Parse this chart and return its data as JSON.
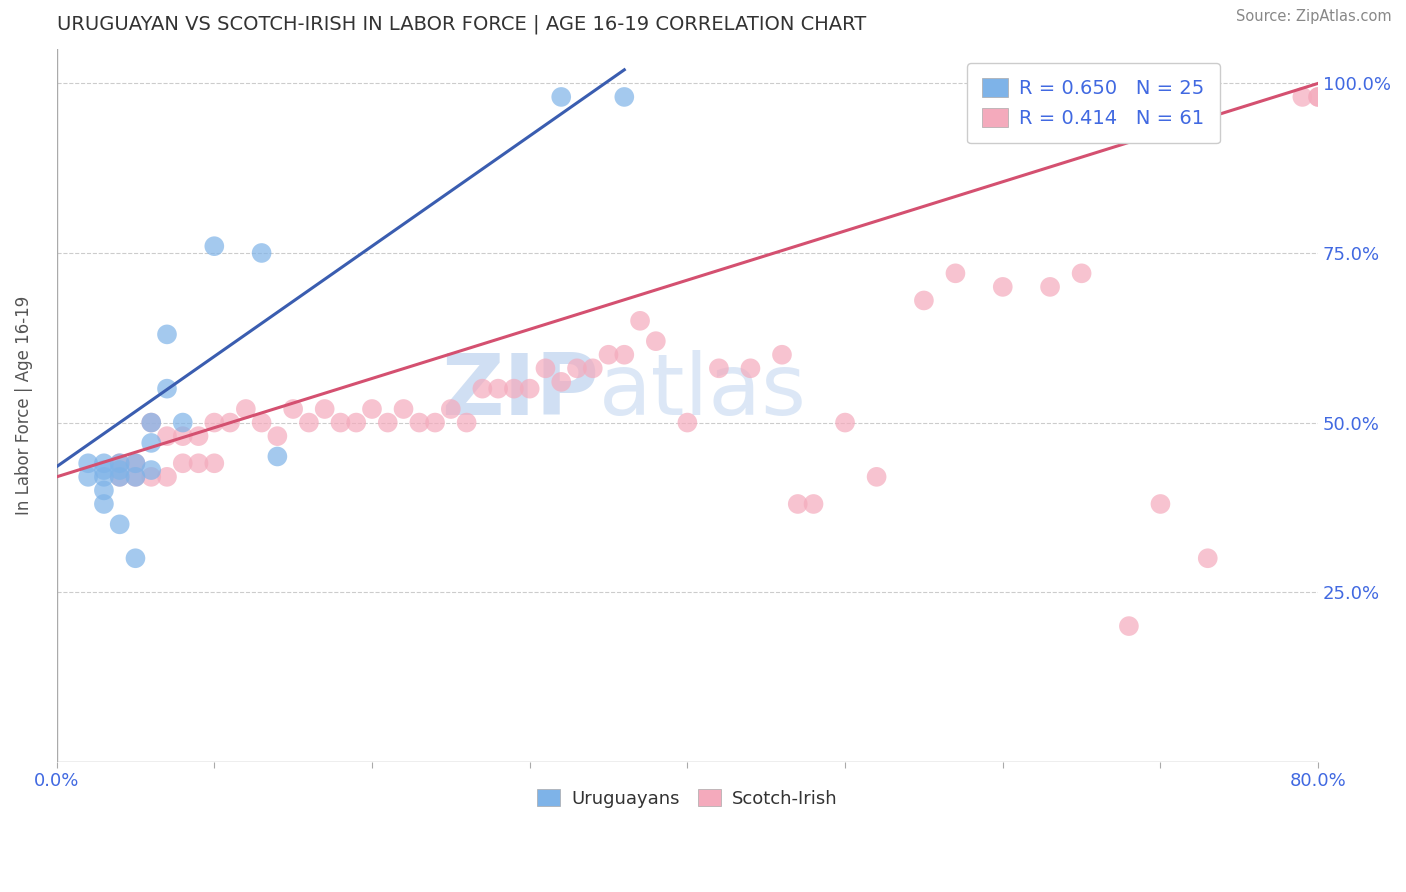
{
  "title": "URUGUAYAN VS SCOTCH-IRISH IN LABOR FORCE | AGE 16-19 CORRELATION CHART",
  "source_text": "Source: ZipAtlas.com",
  "ylabel": "In Labor Force | Age 16-19",
  "xlim": [
    0.0,
    0.8
  ],
  "ylim": [
    0.0,
    1.05
  ],
  "x_ticks": [
    0.0,
    0.1,
    0.2,
    0.3,
    0.4,
    0.5,
    0.6,
    0.7,
    0.8
  ],
  "x_tick_labels": [
    "0.0%",
    "",
    "",
    "",
    "",
    "",
    "",
    "",
    "80.0%"
  ],
  "y_ticks_right": [
    0.25,
    0.5,
    0.75,
    1.0
  ],
  "y_tick_labels_right": [
    "25.0%",
    "50.0%",
    "75.0%",
    "100.0%"
  ],
  "blue_color": "#7EB3E8",
  "pink_color": "#F4AABC",
  "blue_line_color": "#3A5DB0",
  "pink_line_color": "#D45070",
  "legend_R_blue": "R = 0.650",
  "legend_N_blue": "N = 25",
  "legend_R_pink": "R = 0.414",
  "legend_N_pink": "N = 61",
  "legend_label_blue": "Uruguayans",
  "legend_label_pink": "Scotch-Irish",
  "watermark_zip": "ZIP",
  "watermark_atlas": "atlas",
  "background_color": "#FFFFFF",
  "title_color": "#333333",
  "axis_label_color": "#4169E1",
  "blue_scatter_x": [
    0.02,
    0.02,
    0.03,
    0.03,
    0.03,
    0.03,
    0.03,
    0.04,
    0.04,
    0.04,
    0.04,
    0.05,
    0.05,
    0.05,
    0.06,
    0.06,
    0.06,
    0.07,
    0.07,
    0.08,
    0.1,
    0.13,
    0.14,
    0.32,
    0.36
  ],
  "blue_scatter_y": [
    0.44,
    0.42,
    0.44,
    0.43,
    0.42,
    0.4,
    0.38,
    0.44,
    0.43,
    0.42,
    0.35,
    0.44,
    0.42,
    0.3,
    0.5,
    0.47,
    0.43,
    0.63,
    0.55,
    0.5,
    0.76,
    0.75,
    0.45,
    0.98,
    0.98
  ],
  "pink_scatter_x": [
    0.04,
    0.04,
    0.05,
    0.05,
    0.06,
    0.06,
    0.07,
    0.07,
    0.08,
    0.08,
    0.09,
    0.09,
    0.1,
    0.1,
    0.11,
    0.12,
    0.13,
    0.14,
    0.15,
    0.16,
    0.17,
    0.18,
    0.19,
    0.2,
    0.21,
    0.22,
    0.23,
    0.24,
    0.25,
    0.26,
    0.27,
    0.28,
    0.29,
    0.3,
    0.31,
    0.32,
    0.33,
    0.34,
    0.35,
    0.36,
    0.37,
    0.38,
    0.4,
    0.42,
    0.44,
    0.46,
    0.47,
    0.48,
    0.5,
    0.52,
    0.55,
    0.57,
    0.6,
    0.63,
    0.65,
    0.68,
    0.7,
    0.73,
    0.79,
    0.8,
    0.8
  ],
  "pink_scatter_y": [
    0.44,
    0.42,
    0.44,
    0.42,
    0.5,
    0.42,
    0.48,
    0.42,
    0.48,
    0.44,
    0.48,
    0.44,
    0.5,
    0.44,
    0.5,
    0.52,
    0.5,
    0.48,
    0.52,
    0.5,
    0.52,
    0.5,
    0.5,
    0.52,
    0.5,
    0.52,
    0.5,
    0.5,
    0.52,
    0.5,
    0.55,
    0.55,
    0.55,
    0.55,
    0.58,
    0.56,
    0.58,
    0.58,
    0.6,
    0.6,
    0.65,
    0.62,
    0.5,
    0.58,
    0.58,
    0.6,
    0.38,
    0.38,
    0.5,
    0.42,
    0.68,
    0.72,
    0.7,
    0.7,
    0.72,
    0.2,
    0.38,
    0.3,
    0.98,
    0.98,
    0.98
  ],
  "blue_trend_x": [
    0.0,
    0.36
  ],
  "blue_trend_y": [
    0.435,
    1.02
  ],
  "pink_trend_x": [
    0.0,
    0.8
  ],
  "pink_trend_y": [
    0.42,
    1.0
  ]
}
